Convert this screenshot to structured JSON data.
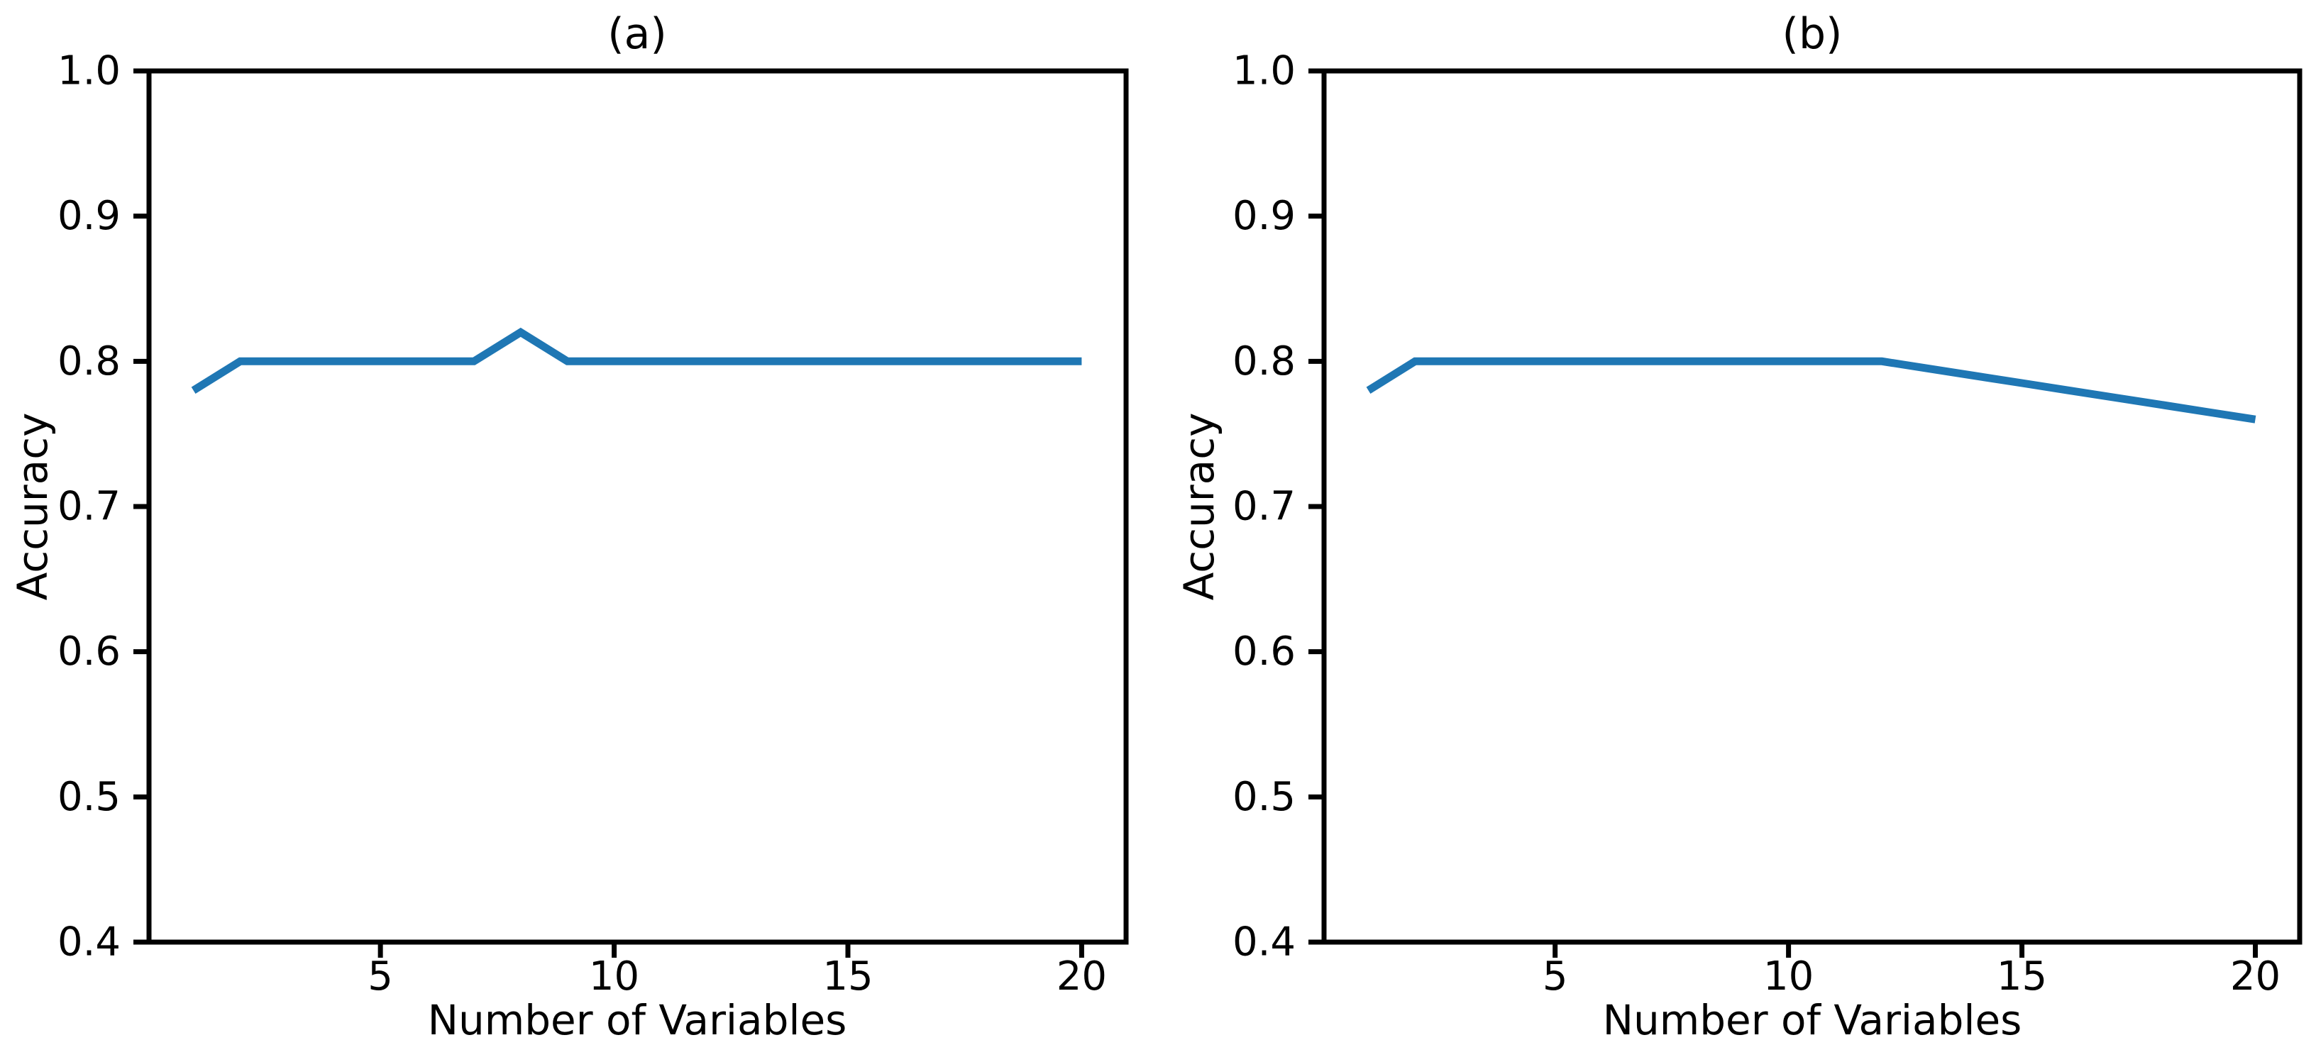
{
  "figure": {
    "background_color": "#ffffff",
    "axis_color": "#000000",
    "line_color": "#1f77b4"
  },
  "chart_data": [
    {
      "type": "line",
      "title": "(a)",
      "xlabel": "Number of Variables",
      "ylabel": "Accuracy",
      "xlim": [
        0.05,
        20.95
      ],
      "ylim": [
        0.4,
        1.0
      ],
      "xticks": [
        5,
        10,
        15,
        20
      ],
      "xtick_labels": [
        "5",
        "10",
        "15",
        "20"
      ],
      "yticks": [
        0.4,
        0.5,
        0.6,
        0.7,
        0.8,
        0.9,
        1.0
      ],
      "ytick_labels": [
        "0.4",
        "0.5",
        "0.6",
        "0.7",
        "0.8",
        "0.9",
        "1.0"
      ],
      "grid": false,
      "legend": null,
      "series": [
        {
          "name": "accuracy",
          "color": "#1f77b4",
          "x": [
            1,
            2,
            3,
            4,
            5,
            6,
            7,
            8,
            9,
            10,
            11,
            12,
            13,
            14,
            15,
            16,
            17,
            18,
            19,
            20
          ],
          "y": [
            0.78,
            0.8,
            0.8,
            0.8,
            0.8,
            0.8,
            0.8,
            0.82,
            0.8,
            0.8,
            0.8,
            0.8,
            0.8,
            0.8,
            0.8,
            0.8,
            0.8,
            0.8,
            0.8,
            0.8
          ]
        }
      ]
    },
    {
      "type": "line",
      "title": "(b)",
      "xlabel": "Number of Variables",
      "ylabel": "Accuracy",
      "xlim": [
        0.05,
        20.95
      ],
      "ylim": [
        0.4,
        1.0
      ],
      "xticks": [
        5,
        10,
        15,
        20
      ],
      "xtick_labels": [
        "5",
        "10",
        "15",
        "20"
      ],
      "yticks": [
        0.4,
        0.5,
        0.6,
        0.7,
        0.8,
        0.9,
        1.0
      ],
      "ytick_labels": [
        "0.4",
        "0.5",
        "0.6",
        "0.7",
        "0.8",
        "0.9",
        "1.0"
      ],
      "grid": false,
      "legend": null,
      "series": [
        {
          "name": "accuracy",
          "color": "#1f77b4",
          "x": [
            1,
            2,
            3,
            4,
            5,
            6,
            7,
            8,
            9,
            10,
            11,
            12,
            13,
            14,
            15,
            16,
            17,
            18,
            19,
            20
          ],
          "y": [
            0.78,
            0.8,
            0.8,
            0.8,
            0.8,
            0.8,
            0.8,
            0.8,
            0.8,
            0.8,
            0.8,
            0.8,
            0.795,
            0.79,
            0.785,
            0.78,
            0.775,
            0.77,
            0.765,
            0.76
          ]
        }
      ]
    }
  ]
}
